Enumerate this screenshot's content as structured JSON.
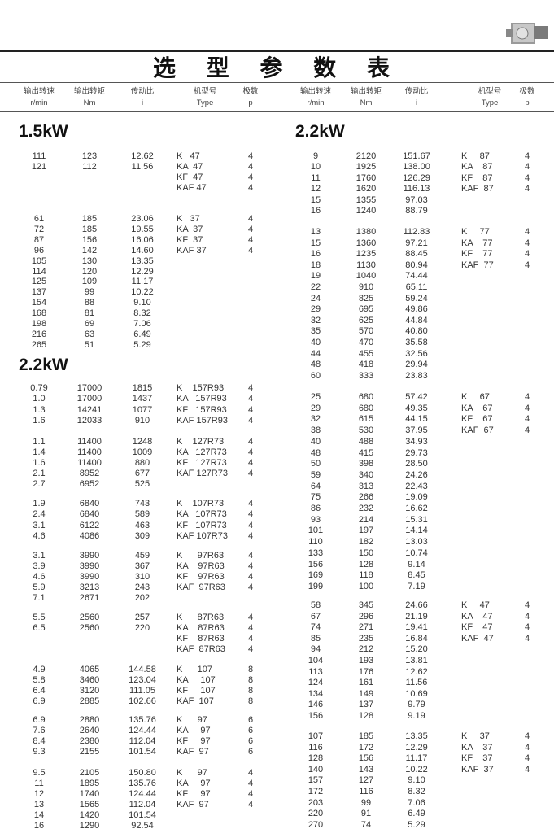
{
  "title": "选 型 参 数 表",
  "icon": "gear-reducer-image",
  "headers": [
    {
      "cn": "输出转速",
      "en": "r/min"
    },
    {
      "cn": "输出转矩",
      "en": "Nm"
    },
    {
      "cn": "传动比",
      "en": "i"
    },
    {
      "cn": "机型号",
      "en": "Type"
    },
    {
      "cn": "极数",
      "en": "p"
    }
  ],
  "sections": [
    {
      "power": "1.5kW",
      "side": "left",
      "groups": [
        {
          "rows": [
            [
              "111",
              "123",
              "12.62"
            ],
            [
              "121",
              "112",
              "11.56"
            ]
          ],
          "types": [
            [
              "K   47",
              "4"
            ],
            [
              "KA  47",
              "4"
            ],
            [
              "KF  47",
              "4"
            ],
            [
              "KAF 47",
              "4"
            ]
          ]
        },
        {
          "rows": [
            [
              "61",
              "185",
              "23.06"
            ],
            [
              "72",
              "185",
              "19.55"
            ],
            [
              "87",
              "156",
              "16.06"
            ],
            [
              "96",
              "142",
              "14.60"
            ],
            [
              "105",
              "130",
              "13.35"
            ],
            [
              "114",
              "120",
              "12.29"
            ],
            [
              "125",
              "109",
              "11.17"
            ],
            [
              "137",
              "99",
              "10.22"
            ],
            [
              "154",
              "88",
              "9.10"
            ],
            [
              "168",
              "81",
              "8.32"
            ],
            [
              "198",
              "69",
              "7.06"
            ],
            [
              "216",
              "63",
              "6.49"
            ],
            [
              "265",
              "51",
              "5.29"
            ]
          ],
          "types": [
            [
              "K   37",
              "4"
            ],
            [
              "KA  37",
              "4"
            ],
            [
              "KF  37",
              "4"
            ],
            [
              "KAF 37",
              "4"
            ]
          ]
        }
      ]
    },
    {
      "power": "2.2kW",
      "side": "left",
      "groups": [
        {
          "rows": [
            [
              "0.79",
              "17000",
              "1815"
            ],
            [
              "1.0",
              "17000",
              "1437"
            ],
            [
              "1.3",
              "14241",
              "1077"
            ],
            [
              "1.6",
              "12033",
              "910"
            ]
          ],
          "types": [
            [
              "K    157R93",
              "4"
            ],
            [
              "KA   157R93",
              "4"
            ],
            [
              "KF   157R93",
              "4"
            ],
            [
              "KAF 157R93",
              "4"
            ]
          ]
        },
        {
          "rows": [
            [
              "1.1",
              "11400",
              "1248"
            ],
            [
              "1.4",
              "11400",
              "1009"
            ],
            [
              "1.6",
              "11400",
              "880"
            ],
            [
              "2.1",
              "8952",
              "677"
            ],
            [
              "2.7",
              "6952",
              "525"
            ]
          ],
          "types": [
            [
              "K    127R73",
              "4"
            ],
            [
              "KA   127R73",
              "4"
            ],
            [
              "KF   127R73",
              "4"
            ],
            [
              "KAF 127R73",
              "4"
            ]
          ]
        },
        {
          "rows": [
            [
              "1.9",
              "6840",
              "743"
            ],
            [
              "2.4",
              "6840",
              "589"
            ],
            [
              "3.1",
              "6122",
              "463"
            ],
            [
              "4.6",
              "4086",
              "309"
            ]
          ],
          "types": [
            [
              "K    107R73",
              "4"
            ],
            [
              "KA   107R73",
              "4"
            ],
            [
              "KF   107R73",
              "4"
            ],
            [
              "KAF 107R73",
              "4"
            ]
          ]
        },
        {
          "rows": [
            [
              "3.1",
              "3990",
              "459"
            ],
            [
              "3.9",
              "3990",
              "367"
            ],
            [
              "4.6",
              "3990",
              "310"
            ],
            [
              "5.9",
              "3213",
              "243"
            ],
            [
              "7.1",
              "2671",
              "202"
            ]
          ],
          "types": [
            [
              "K      97R63",
              "4"
            ],
            [
              "KA    97R63",
              "4"
            ],
            [
              "KF    97R63",
              "4"
            ],
            [
              "KAF  97R63",
              "4"
            ]
          ]
        },
        {
          "rows": [
            [
              "5.5",
              "2560",
              "257"
            ],
            [
              "6.5",
              "2560",
              "220"
            ]
          ],
          "types": [
            [
              "K      87R63",
              "4"
            ],
            [
              "KA    87R63",
              "4"
            ],
            [
              "KF    87R63",
              "4"
            ],
            [
              "KAF  87R63",
              "4"
            ]
          ]
        },
        {
          "rows": [
            [
              "4.9",
              "4065",
              "144.58"
            ],
            [
              "5.8",
              "3460",
              "123.04"
            ],
            [
              "6.4",
              "3120",
              "111.05"
            ],
            [
              "6.9",
              "2885",
              "102.66"
            ]
          ],
          "types": [
            [
              "K      107",
              "8"
            ],
            [
              "KA     107",
              "8"
            ],
            [
              "KF     107",
              "8"
            ],
            [
              "KAF  107",
              "8"
            ]
          ]
        },
        {
          "rows": [
            [
              "6.9",
              "2880",
              "135.76"
            ],
            [
              "7.6",
              "2640",
              "124.44"
            ],
            [
              "8.4",
              "2380",
              "112.04"
            ],
            [
              "9.3",
              "2155",
              "101.54"
            ]
          ],
          "types": [
            [
              "K      97",
              "6"
            ],
            [
              "KA     97",
              "6"
            ],
            [
              "KF     97",
              "6"
            ],
            [
              "KAF  97",
              "6"
            ]
          ]
        },
        {
          "rows": [
            [
              "9.5",
              "2105",
              "150.80"
            ],
            [
              "11",
              "1895",
              "135.76"
            ],
            [
              "12",
              "1740",
              "124.44"
            ],
            [
              "13",
              "1565",
              "112.04"
            ],
            [
              "14",
              "1420",
              "101.54"
            ],
            [
              "16",
              "1290",
              "92.54"
            ]
          ],
          "types": [
            [
              "K      97",
              "4"
            ],
            [
              "KA     97",
              "4"
            ],
            [
              "KF     97",
              "4"
            ],
            [
              "KAF  97",
              "4"
            ]
          ]
        }
      ]
    },
    {
      "power": "2.2kW",
      "side": "right",
      "groups": [
        {
          "rows": [
            [
              "9",
              "2120",
              "151.67"
            ],
            [
              "10",
              "1925",
              "138.00"
            ],
            [
              "11",
              "1760",
              "126.29"
            ],
            [
              "12",
              "1620",
              "116.13"
            ],
            [
              "15",
              "1355",
              "97.03"
            ],
            [
              "16",
              "1240",
              "88.79"
            ]
          ],
          "types": [
            [
              "K     87",
              "4"
            ],
            [
              "KA    87",
              "4"
            ],
            [
              "KF    87",
              "4"
            ],
            [
              "KAF  87",
              "4"
            ]
          ]
        },
        {
          "rows": [
            [
              "13",
              "1380",
              "112.83"
            ],
            [
              "15",
              "1360",
              "97.21"
            ],
            [
              "16",
              "1235",
              "88.45"
            ],
            [
              "18",
              "1130",
              "80.94"
            ],
            [
              "19",
              "1040",
              "74.44"
            ],
            [
              "22",
              "910",
              "65.11"
            ],
            [
              "24",
              "825",
              "59.24"
            ],
            [
              "29",
              "695",
              "49.86"
            ],
            [
              "32",
              "625",
              "44.84"
            ],
            [
              "35",
              "570",
              "40.80"
            ],
            [
              "40",
              "470",
              "35.58"
            ],
            [
              "44",
              "455",
              "32.56"
            ],
            [
              "48",
              "418",
              "29.94"
            ],
            [
              "60",
              "333",
              "23.83"
            ]
          ],
          "types": [
            [
              "K     77",
              "4"
            ],
            [
              "KA    77",
              "4"
            ],
            [
              "KF    77",
              "4"
            ],
            [
              "KAF  77",
              "4"
            ]
          ]
        },
        {
          "rows": [
            [
              "25",
              "680",
              "57.42"
            ],
            [
              "29",
              "680",
              "49.35"
            ],
            [
              "32",
              "615",
              "44.15"
            ],
            [
              "38",
              "530",
              "37.95"
            ],
            [
              "40",
              "488",
              "34.93"
            ],
            [
              "48",
              "415",
              "29.73"
            ],
            [
              "50",
              "398",
              "28.50"
            ],
            [
              "59",
              "340",
              "24.26"
            ],
            [
              "64",
              "313",
              "22.43"
            ],
            [
              "75",
              "266",
              "19.09"
            ],
            [
              "86",
              "232",
              "16.62"
            ],
            [
              "93",
              "214",
              "15.31"
            ],
            [
              "101",
              "197",
              "14.14"
            ],
            [
              "110",
              "182",
              "13.03"
            ],
            [
              "133",
              "150",
              "10.74"
            ],
            [
              "156",
              "128",
              "9.14"
            ],
            [
              "169",
              "118",
              "8.45"
            ],
            [
              "199",
              "100",
              "7.19"
            ]
          ],
          "types": [
            [
              "K     67",
              "4"
            ],
            [
              "KA    67",
              "4"
            ],
            [
              "KF    67",
              "4"
            ],
            [
              "KAF  67",
              "4"
            ]
          ]
        },
        {
          "rows": [
            [
              "58",
              "345",
              "24.66"
            ],
            [
              "67",
              "296",
              "21.19"
            ],
            [
              "74",
              "271",
              "19.41"
            ],
            [
              "85",
              "235",
              "16.84"
            ],
            [
              "94",
              "212",
              "15.20"
            ],
            [
              "104",
              "193",
              "13.81"
            ],
            [
              "113",
              "176",
              "12.62"
            ],
            [
              "124",
              "161",
              "11.56"
            ],
            [
              "134",
              "149",
              "10.69"
            ],
            [
              "146",
              "137",
              "9.79"
            ],
            [
              "156",
              "128",
              "9.19"
            ]
          ],
          "types": [
            [
              "K     47",
              "4"
            ],
            [
              "KA    47",
              "4"
            ],
            [
              "KF    47",
              "4"
            ],
            [
              "KAF  47",
              "4"
            ]
          ]
        },
        {
          "rows": [
            [
              "107",
              "185",
              "13.35"
            ],
            [
              "116",
              "172",
              "12.29"
            ],
            [
              "128",
              "156",
              "11.17"
            ],
            [
              "140",
              "143",
              "10.22"
            ],
            [
              "157",
              "127",
              "9.10"
            ],
            [
              "172",
              "116",
              "8.32"
            ],
            [
              "203",
              "99",
              "7.06"
            ],
            [
              "220",
              "91",
              "6.49"
            ],
            [
              "270",
              "74",
              "5.29"
            ]
          ],
          "types": [
            [
              "K     37",
              "4"
            ],
            [
              "KA    37",
              "4"
            ],
            [
              "KF    37",
              "4"
            ],
            [
              "KAF  37",
              "4"
            ]
          ]
        }
      ]
    }
  ]
}
